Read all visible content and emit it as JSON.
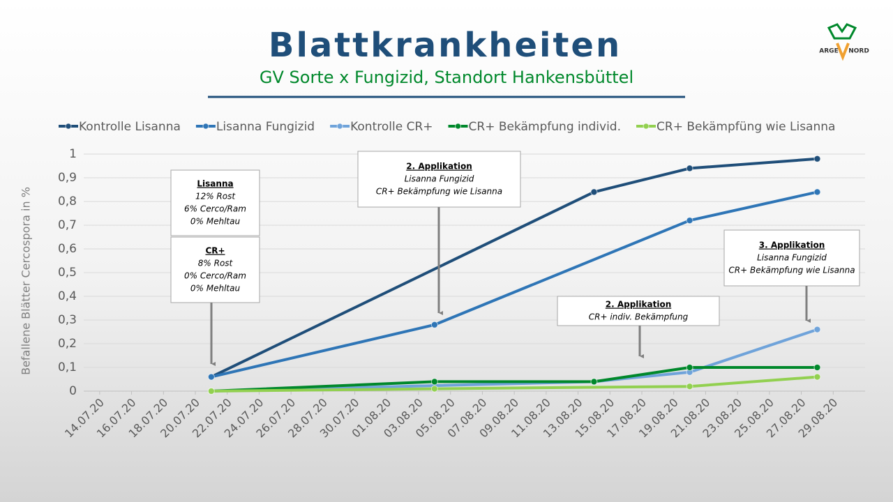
{
  "header": {
    "title": "Blattkrankheiten",
    "subtitle": "GV Sorte x Fungizid, Standort Hankensbüttel",
    "logo": [
      "ARGE",
      "NORD"
    ]
  },
  "chart_data": {
    "type": "line",
    "y_label": "Befallene Blätter Cercospora  in %",
    "xlim": [
      "13.07.20",
      "31.08.20"
    ],
    "xticks": [
      "14.07.20",
      "16.07.20",
      "18.07.20",
      "20.07.20",
      "22.07.20",
      "24.07.20",
      "26.07.20",
      "28.07.20",
      "30.07.20",
      "01.08.20",
      "03.08.20",
      "05.08.20",
      "07.08.20",
      "09.08.20",
      "11.08.20",
      "13.08.20",
      "15.08.20",
      "17.08.20",
      "19.08.20",
      "21.08.20",
      "23.08.20",
      "25.08.20",
      "27.08.20",
      "29.08.20"
    ],
    "ylim": [
      0,
      1
    ],
    "yticks": [
      0,
      {
        "value": 0.1,
        "label": "0,1"
      },
      {
        "value": 0.2,
        "label": "0,2"
      },
      {
        "value": 0.3,
        "label": "0,3"
      },
      {
        "value": 0.4,
        "label": "0,4"
      },
      {
        "value": 0.5,
        "label": "0,5"
      },
      {
        "value": 0.6,
        "label": "0,6"
      },
      {
        "value": 0.7,
        "label": "0,7"
      },
      {
        "value": 0.8,
        "label": "0,8"
      },
      {
        "value": 0.9,
        "label": "0,9"
      },
      1
    ],
    "grid": true,
    "series": [
      {
        "name": "Kontrolle Lisanna",
        "color": "#1f4e79",
        "x": [
          "21.07.20",
          "14.08.20",
          "20.08.20",
          "28.08.20"
        ],
        "values": [
          0.06,
          0.84,
          0.94,
          0.98
        ]
      },
      {
        "name": "Lisanna Fungizid",
        "color": "#2e75b6",
        "x": [
          "21.07.20",
          "04.08.20",
          "20.08.20",
          "28.08.20"
        ],
        "values": [
          0.06,
          0.28,
          0.72,
          0.84
        ]
      },
      {
        "name": "Kontrolle CR+",
        "color": "#6fa3da",
        "x": [
          "21.07.20",
          "14.08.20",
          "20.08.20",
          "28.08.20"
        ],
        "values": [
          0,
          0.04,
          0.08,
          0.26
        ]
      },
      {
        "name": "CR+ Bekämpfung individ.",
        "color": "#00882b",
        "x": [
          "21.07.20",
          "04.08.20",
          "14.08.20",
          "20.08.20",
          "28.08.20"
        ],
        "values": [
          0,
          0.04,
          0.04,
          0.1,
          0.1
        ]
      },
      {
        "name": "CR+ Bekämpfüng wie Lisanna",
        "color": "#92d050",
        "x": [
          "21.07.20",
          "04.08.20",
          "20.08.20",
          "28.08.20"
        ],
        "values": [
          0,
          0.01,
          0.02,
          0.06
        ]
      }
    ],
    "annotations": [
      {
        "title": "Lisanna",
        "lines": [
          "12% Rost",
          "6% Cerco/Ram",
          "0% Mehltau"
        ]
      },
      {
        "title": "CR+",
        "lines": [
          "8% Rost",
          "0% Cerco/Ram",
          "0% Mehltau"
        ]
      },
      {
        "title": "2. Applikation",
        "lines": [
          "Lisanna Fungizid",
          "CR+ Bekämpfung wie Lisanna"
        ]
      },
      {
        "title": "2. Applikation",
        "lines": [
          "CR+ indiv. Bekämpfung"
        ]
      },
      {
        "title": "3. Applikation",
        "lines": [
          "Lisanna Fungizid",
          "CR+ Bekämpfung wie Lisanna"
        ]
      }
    ]
  }
}
